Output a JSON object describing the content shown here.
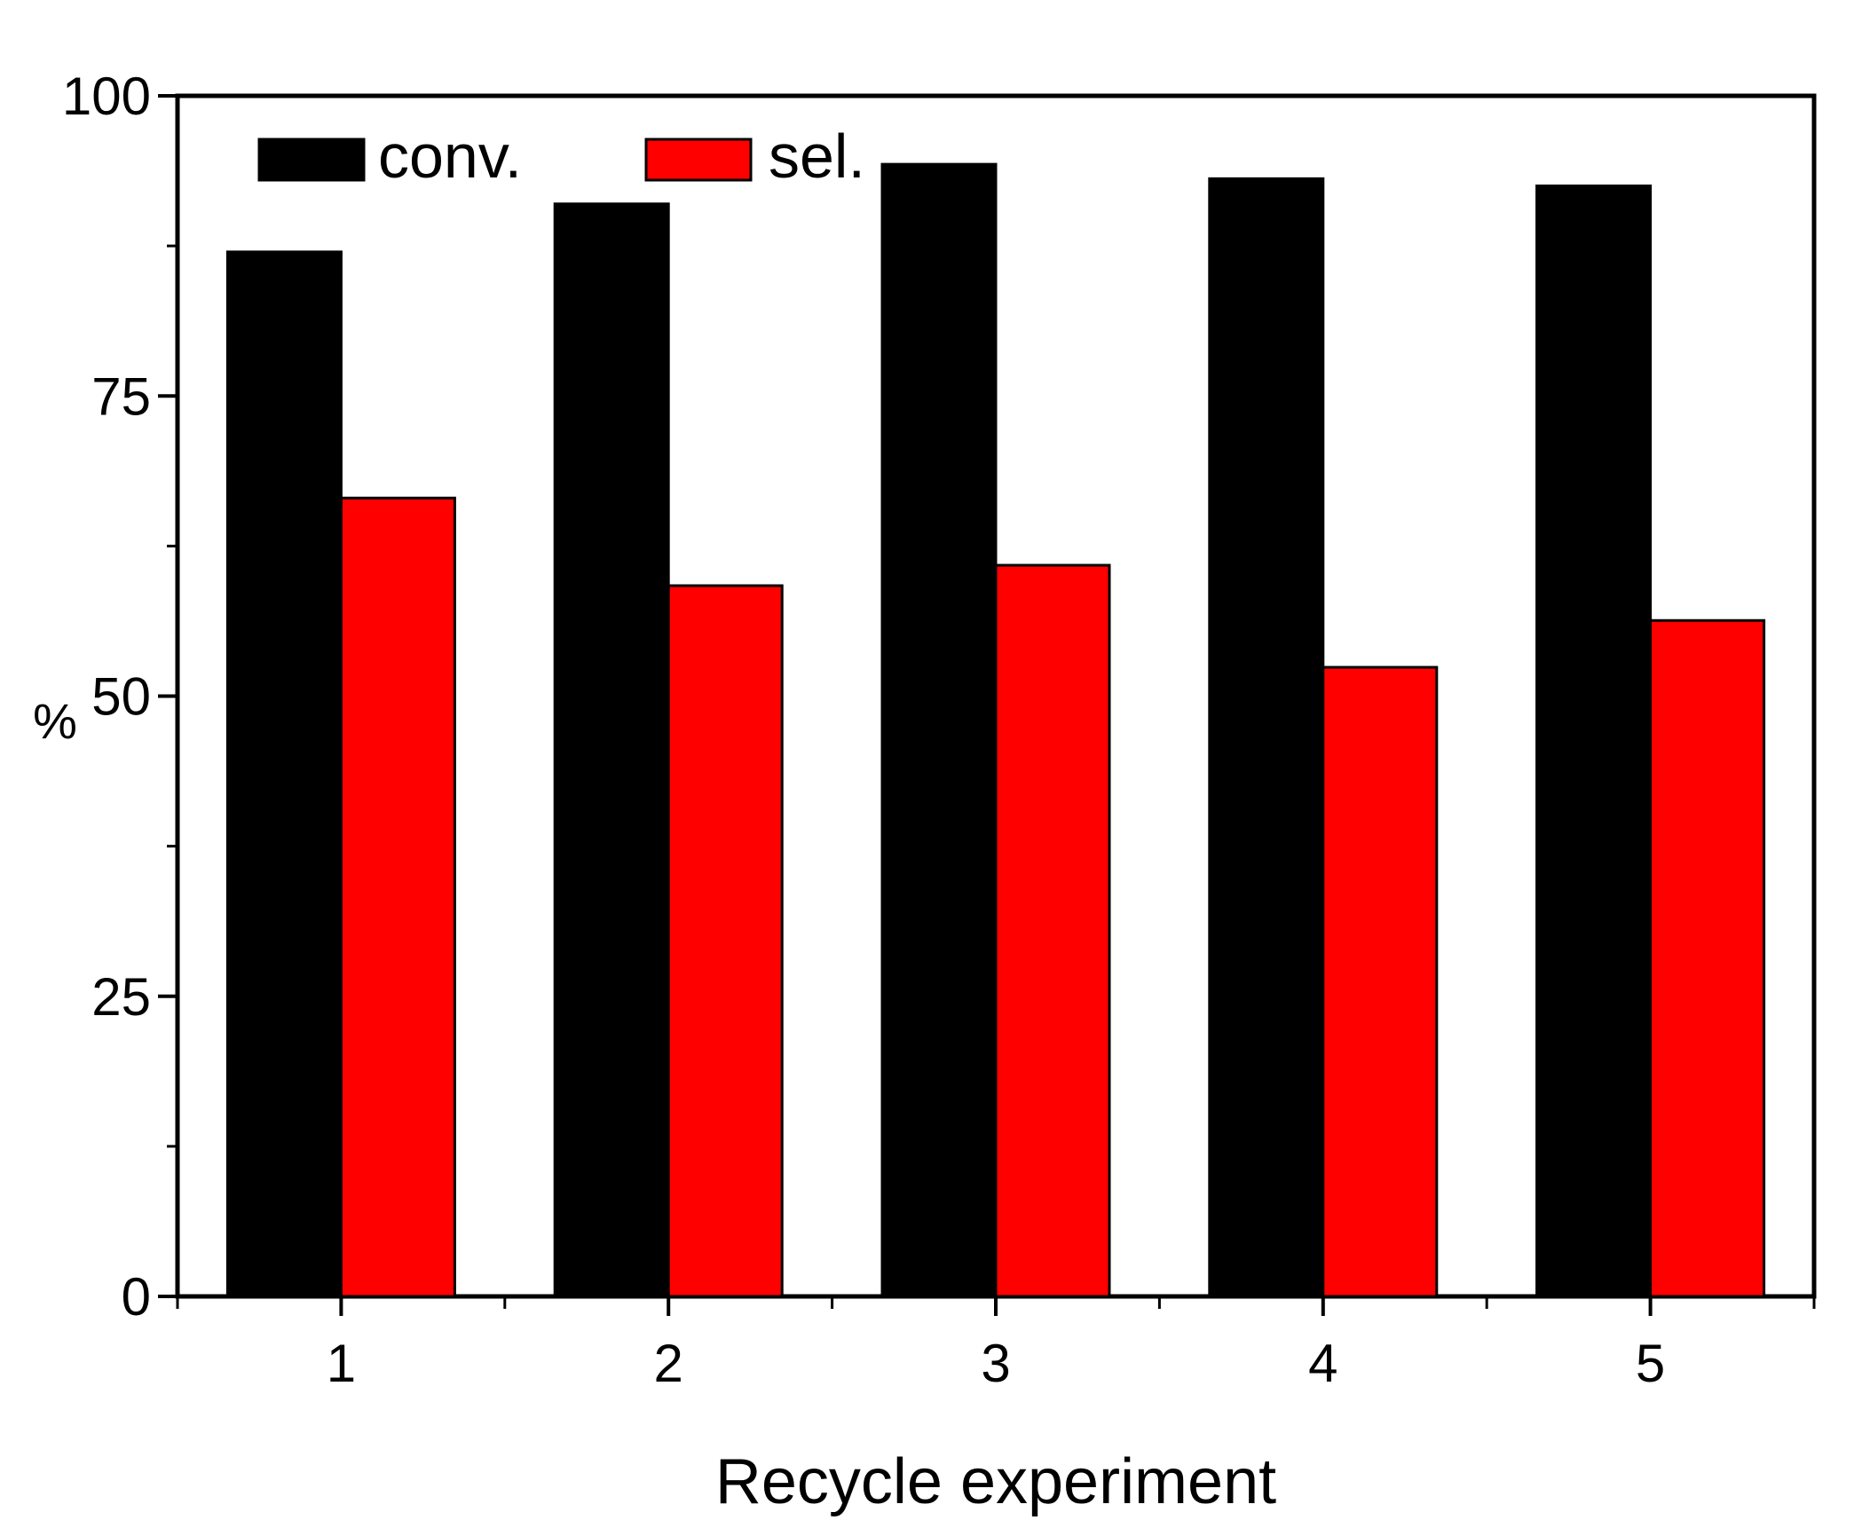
{
  "chart_data": {
    "type": "bar",
    "title": "",
    "xlabel": "Recycle experiment",
    "ylabel": "%",
    "categories": [
      "1",
      "2",
      "3",
      "4",
      "5"
    ],
    "series": [
      {
        "name": "conv.",
        "color": "#000000",
        "values": [
          87.0,
          91.0,
          94.3,
          93.1,
          92.5
        ]
      },
      {
        "name": "sel.",
        "color": "#ff0000",
        "values": [
          66.5,
          59.2,
          60.9,
          52.4,
          56.3
        ]
      }
    ],
    "ylim": [
      0,
      100
    ],
    "yticks": [
      "0",
      "25",
      "50",
      "75",
      "100"
    ],
    "grid": false,
    "legend_position": "top-left"
  }
}
